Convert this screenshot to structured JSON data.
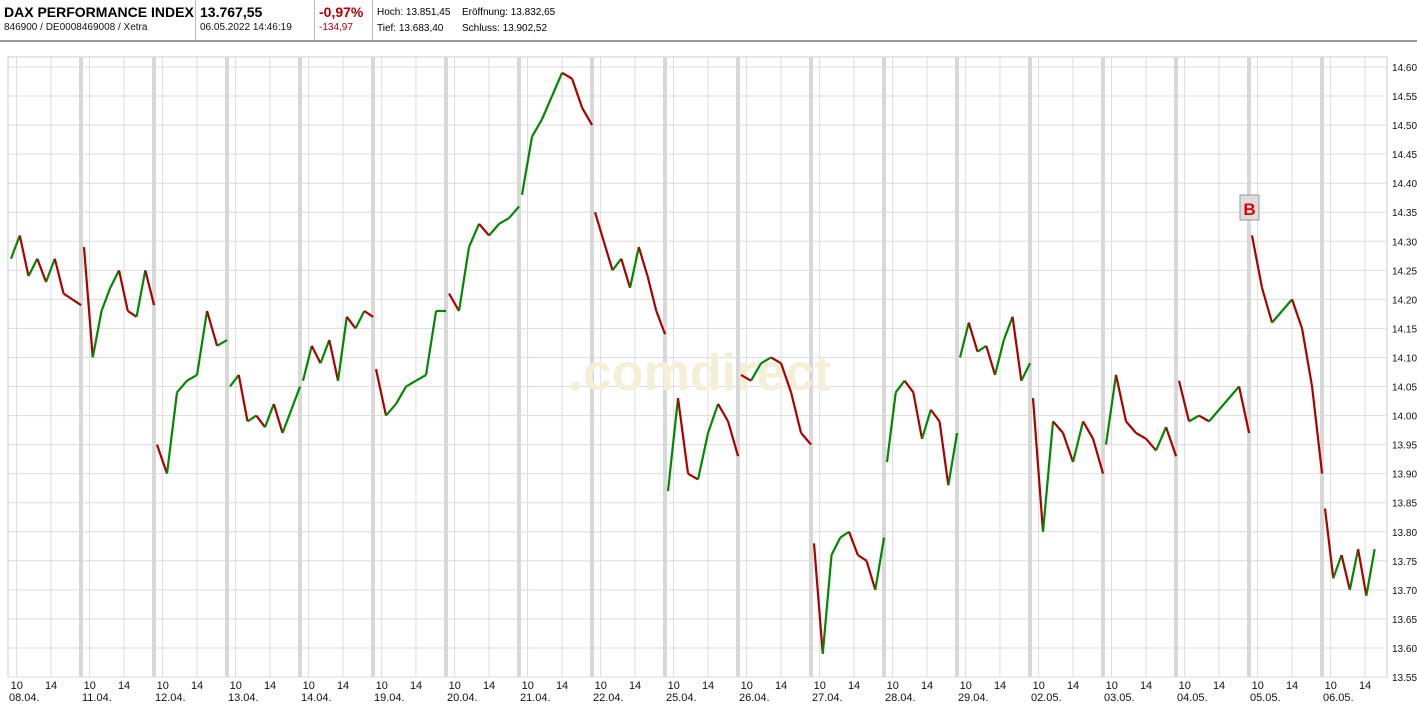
{
  "header": {
    "title": "DAX PERFORMANCE INDEX",
    "ids": "846900 / DE0008469008 / Xetra",
    "price": "13.767,55",
    "datetime": "06.05.2022 14:46:19",
    "change_pct": "-0,97%",
    "change_abs": "-134,97",
    "high": "Hoch: 13.851,45",
    "open": "Eröffnung: 13.832,65",
    "low": "Tief: 13.683,40",
    "close": "Schluss: 13.902,52"
  },
  "watermark": "comdirect",
  "marker": "B",
  "colors": {
    "up": "#008800",
    "down": "#aa0000",
    "grid": "#dddddd",
    "day_sep": "#d8d8d8",
    "negative": "#b00000"
  },
  "chart_data": {
    "type": "line",
    "title": "",
    "xlabel": "",
    "ylabel": "",
    "ylim": [
      13550,
      14600
    ],
    "yticks": [
      "14.600",
      "14.550",
      "14.500",
      "14.450",
      "14.400",
      "14.350",
      "14.300",
      "14.250",
      "14.200",
      "14.150",
      "14.100",
      "14.050",
      "14.000",
      "13.950",
      "13.900",
      "13.850",
      "13.800",
      "13.750",
      "13.700",
      "13.650",
      "13.600",
      "13.550"
    ],
    "hour_ticks": [
      "10",
      "14"
    ],
    "days": [
      "08.04.",
      "11.04.",
      "12.04.",
      "13.04.",
      "14.04.",
      "19.04.",
      "20.04.",
      "21.04.",
      "22.04.",
      "25.04.",
      "26.04.",
      "27.04.",
      "28.04.",
      "29.04.",
      "02.05.",
      "03.05.",
      "04.05.",
      "05.05.",
      "06.05."
    ],
    "series": [
      [
        14270,
        14310,
        14240,
        14270,
        14230,
        14270,
        14210,
        14200,
        14190
      ],
      [
        14290,
        14100,
        14180,
        14220,
        14250,
        14180,
        14170,
        14250,
        14190
      ],
      [
        13950,
        13900,
        14040,
        14060,
        14070,
        14180,
        14120,
        14130
      ],
      [
        14050,
        14070,
        13990,
        14000,
        13980,
        14020,
        13970,
        14010,
        14050
      ],
      [
        14060,
        14120,
        14090,
        14130,
        14060,
        14170,
        14150,
        14180,
        14170
      ],
      [
        14080,
        14000,
        14020,
        14050,
        14060,
        14070,
        14180,
        14180
      ],
      [
        14210,
        14180,
        14290,
        14330,
        14310,
        14330,
        14340,
        14360
      ],
      [
        14380,
        14480,
        14510,
        14550,
        14590,
        14580,
        14530,
        14500
      ],
      [
        14350,
        14300,
        14250,
        14270,
        14220,
        14290,
        14240,
        14180,
        14140
      ],
      [
        13870,
        14030,
        13900,
        13890,
        13970,
        14020,
        13990,
        13930
      ],
      [
        14070,
        14060,
        14090,
        14100,
        14090,
        14040,
        13970,
        13950
      ],
      [
        13780,
        13590,
        13760,
        13790,
        13800,
        13760,
        13750,
        13700,
        13790
      ],
      [
        13920,
        14040,
        14060,
        14040,
        13960,
        14010,
        13990,
        13880,
        13970
      ],
      [
        14100,
        14160,
        14110,
        14120,
        14070,
        14130,
        14170,
        14060,
        14090
      ],
      [
        14030,
        13800,
        13990,
        13970,
        13920,
        13990,
        13960,
        13900
      ],
      [
        13950,
        14070,
        13990,
        13970,
        13960,
        13940,
        13980,
        13930
      ],
      [
        14060,
        13990,
        14000,
        13990,
        14010,
        14030,
        14050,
        13970
      ],
      [
        14310,
        14220,
        14160,
        14180,
        14200,
        14150,
        14050,
        13900
      ],
      [
        13840,
        13720,
        13760,
        13700,
        13770,
        13690,
        13770
      ]
    ],
    "last_day_fraction": 0.68
  }
}
